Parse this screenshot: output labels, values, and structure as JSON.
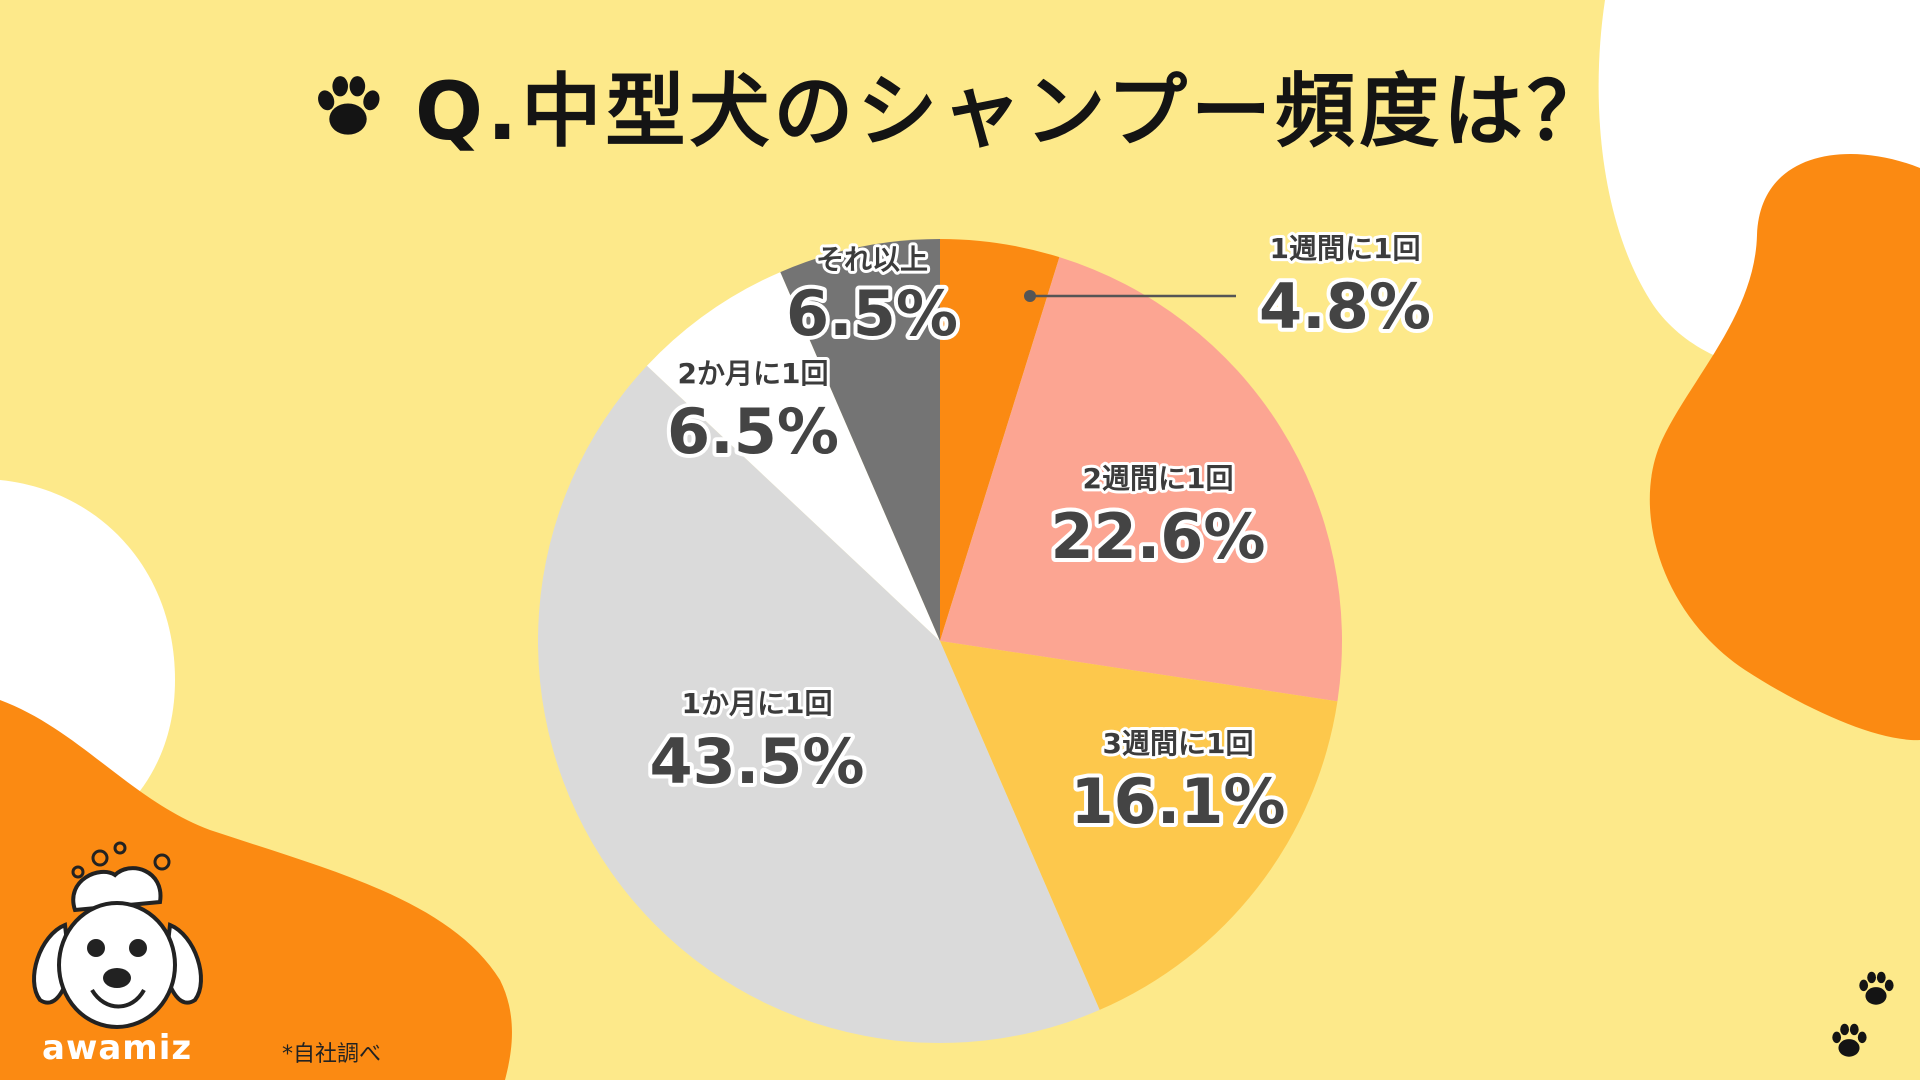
{
  "title": "Q.中型犬のシャンプー頻度は？",
  "logo": "awamiz",
  "source_note": "*自社調べ",
  "icons": [
    "paw-print-icon",
    "dog-mascot-icon"
  ],
  "colors": {
    "background": "#fde98a",
    "accent_orange": "#fb8a12",
    "white_blob": "#ffffff"
  },
  "chart_data": {
    "type": "pie",
    "start": "12 o'clock",
    "direction": "clockwise",
    "slices": [
      {
        "label": "1週間に1回",
        "value": 4.8,
        "text": "4.8%",
        "color": "#fb8a12"
      },
      {
        "label": "2週間に1回",
        "value": 22.6,
        "text": "22.6%",
        "color": "#fca592"
      },
      {
        "label": "3週間に1回",
        "value": 16.1,
        "text": "16.1%",
        "color": "#fdc84c"
      },
      {
        "label": "1か月に1回",
        "value": 43.5,
        "text": "43.5%",
        "color": "#dadada"
      },
      {
        "label": "2か月に1回",
        "value": 6.5,
        "text": "6.5%",
        "color": "#ffffff"
      },
      {
        "label": "それ以上",
        "value": 6.5,
        "text": "6.5%",
        "color": "#747474"
      }
    ]
  }
}
